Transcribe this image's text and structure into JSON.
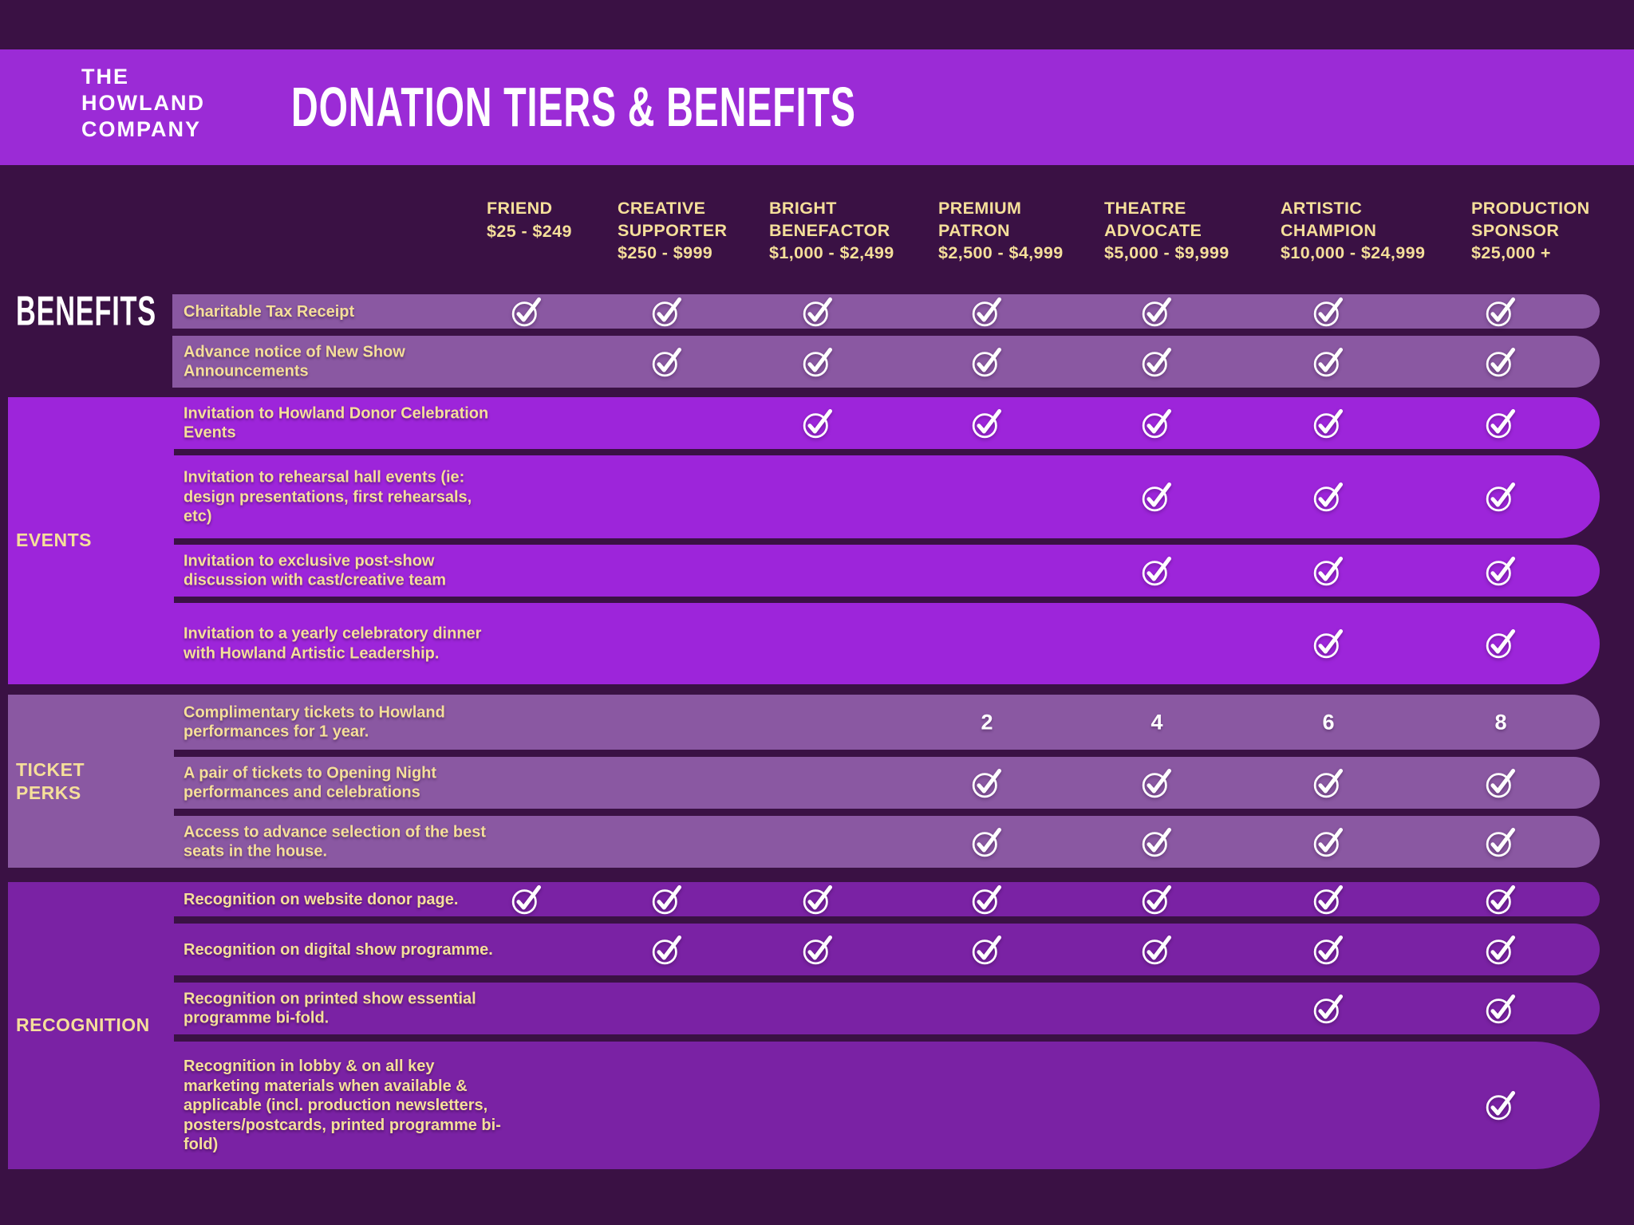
{
  "brand": {
    "line1": "THE",
    "line2": "HOWLAND",
    "line3": "COMPANY"
  },
  "title": "DONATION TIERS & BENEFITS",
  "tiers": [
    {
      "name_lines": [
        "FRIEND"
      ],
      "range": "$25 - $249"
    },
    {
      "name_lines": [
        "CREATIVE",
        "SUPPORTER"
      ],
      "range": "$250 - $999"
    },
    {
      "name_lines": [
        "BRIGHT",
        "BENEFACTOR"
      ],
      "range": "$1,000 - $2,499"
    },
    {
      "name_lines": [
        "PREMIUM",
        "PATRON"
      ],
      "range": "$2,500 - $4,999"
    },
    {
      "name_lines": [
        "THEATRE",
        "ADVOCATE"
      ],
      "range": "$5,000 - $9,999"
    },
    {
      "name_lines": [
        "ARTISTIC",
        "CHAMPION"
      ],
      "range": "$10,000 - $24,999"
    },
    {
      "name_lines": [
        "PRODUCTION",
        "SPONSOR"
      ],
      "range": "$25,000 +"
    }
  ],
  "sections": [
    {
      "id": "benefits",
      "label": "BENEFITS",
      "style": "display"
    },
    {
      "id": "events",
      "label": "EVENTS",
      "style": "small"
    },
    {
      "id": "ticket-perks",
      "label": "TICKET PERKS",
      "style": "small"
    },
    {
      "id": "recognition",
      "label": "RECOGNITION",
      "style": "small"
    }
  ],
  "rows": [
    {
      "section": "benefits",
      "label": "Charitable Tax Receipt",
      "cells": [
        "check",
        "check",
        "check",
        "check",
        "check",
        "check",
        "check"
      ]
    },
    {
      "section": "benefits",
      "label": "Advance notice of New Show Announcements",
      "cells": [
        "",
        "check",
        "check",
        "check",
        "check",
        "check",
        "check"
      ]
    },
    {
      "section": "events",
      "label": "Invitation to Howland Donor Celebration Events",
      "cells": [
        "",
        "",
        "check",
        "check",
        "check",
        "check",
        "check"
      ]
    },
    {
      "section": "events",
      "label": "Invitation to rehearsal hall events (ie: design presentations, first rehearsals, etc)",
      "cells": [
        "",
        "",
        "",
        "",
        "check",
        "check",
        "check"
      ]
    },
    {
      "section": "events",
      "label": "Invitation to exclusive post-show discussion with cast/creative team",
      "cells": [
        "",
        "",
        "",
        "",
        "check",
        "check",
        "check"
      ]
    },
    {
      "section": "events",
      "label": "Invitation to a yearly celebratory dinner with Howland Artistic Leadership.",
      "cells": [
        "",
        "",
        "",
        "",
        "",
        "check",
        "check"
      ]
    },
    {
      "section": "ticket-perks",
      "label": "Complimentary tickets to Howland performances for 1 year.",
      "cells": [
        "",
        "",
        "",
        "2",
        "4",
        "6",
        "8"
      ]
    },
    {
      "section": "ticket-perks",
      "label": "A pair of tickets to Opening Night performances and celebrations",
      "cells": [
        "",
        "",
        "",
        "check",
        "check",
        "check",
        "check"
      ]
    },
    {
      "section": "ticket-perks",
      "label": "Access to advance selection of the best seats in the house.",
      "cells": [
        "",
        "",
        "",
        "check",
        "check",
        "check",
        "check"
      ]
    },
    {
      "section": "recognition",
      "label": "Recognition on website donor page.",
      "cells": [
        "check",
        "check",
        "check",
        "check",
        "check",
        "check",
        "check"
      ]
    },
    {
      "section": "recognition",
      "label": "Recognition on digital show programme.",
      "cells": [
        "",
        "check",
        "check",
        "check",
        "check",
        "check",
        "check"
      ]
    },
    {
      "section": "recognition",
      "label": "Recognition on printed show essential programme bi-fold.",
      "cells": [
        "",
        "",
        "",
        "",
        "",
        "check",
        "check"
      ]
    },
    {
      "section": "recognition",
      "label": "Recognition in lobby & on all key marketing materials when available & applicable (incl. production newsletters, posters/postcards, printed programme bi-fold)",
      "cells": [
        "",
        "",
        "",
        "",
        "",
        "",
        "check"
      ]
    }
  ],
  "icons": {
    "check": "circled-checkmark-icon"
  },
  "colors": {
    "background": "#3A1144",
    "header_band": "#9B2BD6",
    "events_purple": "#9D25DA",
    "mauve_purple": "#8A58A2",
    "recognition_purple": "#7A22A4",
    "text_yellow": "#F5DF9A",
    "text_white": "#FFFFFF"
  }
}
